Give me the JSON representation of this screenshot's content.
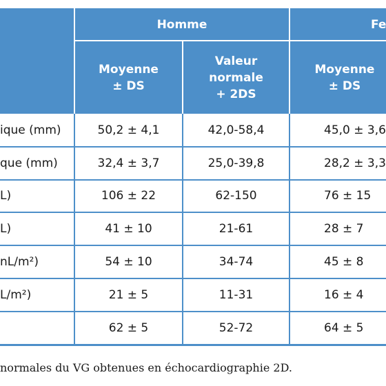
{
  "table": {
    "group_headers": [
      "Homme",
      "Fe"
    ],
    "sub_headers": [
      [
        "Moyenne",
        "± DS"
      ],
      [
        "Valeur",
        "normale",
        "+ 2DS"
      ],
      [
        "Moyenne",
        "± DS"
      ]
    ],
    "rows": [
      {
        "label": "ique (mm)",
        "cells": [
          "50,2 ± 4,1",
          "42,0-58,4",
          "45,0 ± 3,6"
        ]
      },
      {
        "label": "que (mm)",
        "cells": [
          "32,4 ± 3,7",
          "25,0-39,8",
          "28,2 ± 3,3"
        ]
      },
      {
        "label": "L)",
        "cells": [
          "106 ± 22",
          "62-150",
          "76 ± 15"
        ]
      },
      {
        "label": "L)",
        "cells": [
          "41 ± 10",
          "21-61",
          "28 ± 7"
        ]
      },
      {
        "label": "nL/m²)",
        "cells": [
          "54 ± 10",
          "34-74",
          "45 ± 8"
        ]
      },
      {
        "label": "L/m²)",
        "cells": [
          "21 ± 5",
          "11-31",
          "16 ± 4"
        ]
      },
      {
        "cells": [
          "62 ± 5",
          "52-72",
          "64 ± 5"
        ]
      }
    ]
  },
  "caption": "normales du VG obtenues en échocardiographie 2D."
}
